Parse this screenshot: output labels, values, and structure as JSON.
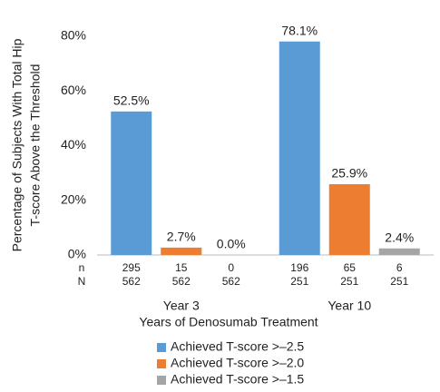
{
  "chart_data": {
    "type": "bar",
    "y_label": [
      "Percentage of Subjects With Total Hip",
      "T-score  Above the Threshold"
    ],
    "x_label": "Years of Denosumab Treatment",
    "categories": [
      "Year 3",
      "Year 10"
    ],
    "ylim": [
      0,
      80
    ],
    "yticks": [
      {
        "value": 0,
        "label": "0%"
      },
      {
        "value": 20,
        "label": "20%"
      },
      {
        "value": 40,
        "label": "40%"
      },
      {
        "value": 60,
        "label": "60%"
      },
      {
        "value": 80,
        "label": "80%"
      }
    ],
    "n_label": "n",
    "N_label": "N",
    "series": [
      {
        "name": "Achieved T-score >–2.5",
        "color": "#5b9bd5",
        "values": [
          52.5,
          78.1
        ],
        "value_labels": [
          "52.5%",
          "78.1%"
        ],
        "n": [
          295,
          196
        ],
        "N": [
          562,
          251
        ]
      },
      {
        "name": "Achieved T-score >–2.0",
        "color": "#ed7d31",
        "values": [
          2.7,
          25.9
        ],
        "value_labels": [
          "2.7%",
          "25.9%"
        ],
        "n": [
          15,
          65
        ],
        "N": [
          562,
          251
        ]
      },
      {
        "name": "Achieved T-score >–1.5",
        "color": "#a5a5a5",
        "values": [
          0.0,
          2.4
        ],
        "value_labels": [
          "0.0%",
          "2.4%"
        ],
        "n": [
          0,
          6
        ],
        "N": [
          562,
          251
        ]
      }
    ],
    "legend": "bottom"
  }
}
